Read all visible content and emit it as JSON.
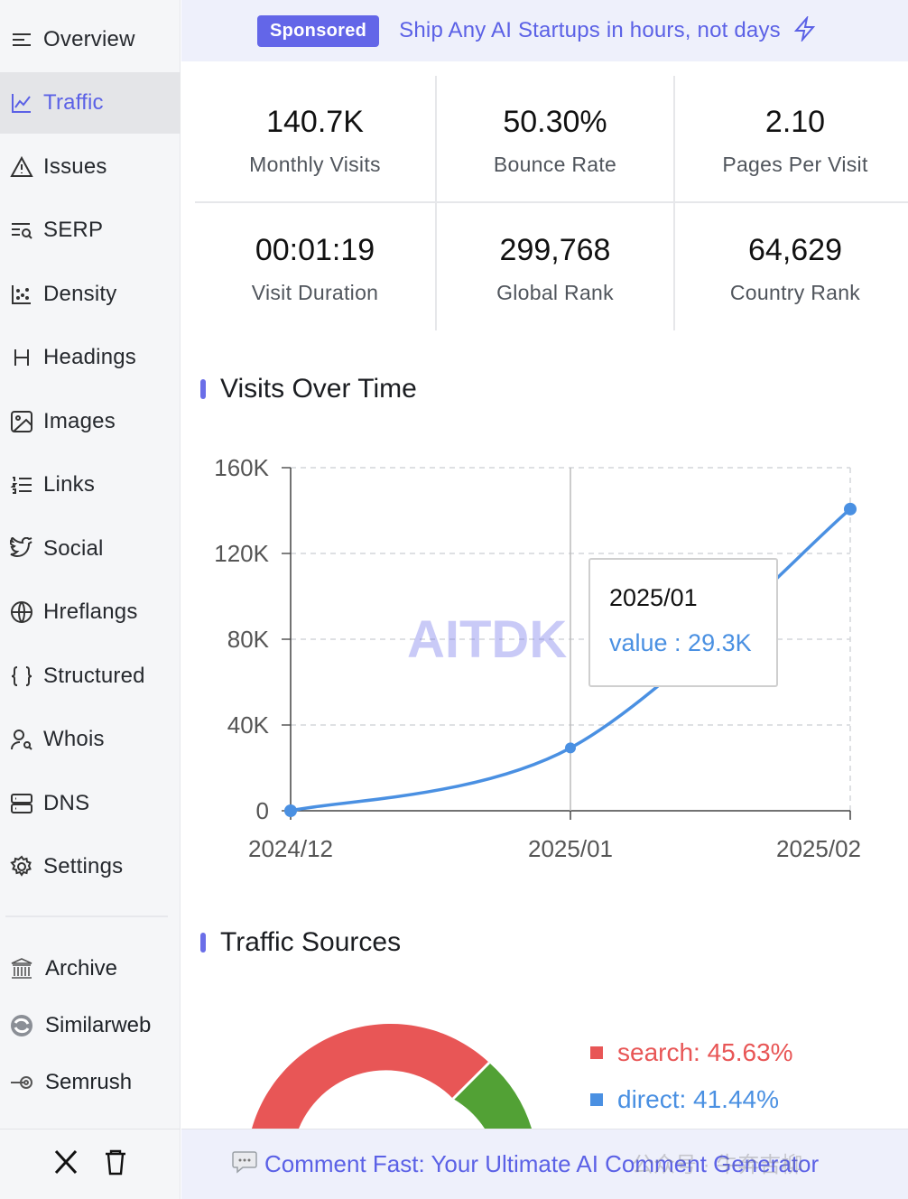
{
  "sidebar": {
    "items": [
      {
        "label": "Overview",
        "icon": "list-icon",
        "active": false
      },
      {
        "label": "Traffic",
        "icon": "line-chart-icon",
        "active": true
      },
      {
        "label": "Issues",
        "icon": "warning-icon",
        "active": false
      },
      {
        "label": "SERP",
        "icon": "serp-icon",
        "active": false
      },
      {
        "label": "Density",
        "icon": "scatter-icon",
        "active": false
      },
      {
        "label": "Headings",
        "icon": "heading-icon",
        "active": false
      },
      {
        "label": "Images",
        "icon": "image-icon",
        "active": false
      },
      {
        "label": "Links",
        "icon": "numbered-list-icon",
        "active": false
      },
      {
        "label": "Social",
        "icon": "bird-icon",
        "active": false
      },
      {
        "label": "Hreflangs",
        "icon": "globe-icon",
        "active": false
      },
      {
        "label": "Structured",
        "icon": "braces-icon",
        "active": false
      },
      {
        "label": "Whois",
        "icon": "user-search-icon",
        "active": false
      },
      {
        "label": "DNS",
        "icon": "server-icon",
        "active": false
      },
      {
        "label": "Settings",
        "icon": "gear-icon",
        "active": false
      }
    ],
    "external": [
      {
        "label": "Archive",
        "icon": "archive-building-icon"
      },
      {
        "label": "Similarweb",
        "icon": "similarweb-logo-icon"
      },
      {
        "label": "Semrush",
        "icon": "semrush-logo-icon"
      }
    ],
    "bottom_icons": [
      "x-logo-icon",
      "trash-icon"
    ]
  },
  "banner": {
    "badge": "Sponsored",
    "text": "Ship Any AI Startups in hours, not days",
    "icon": "lightning-icon"
  },
  "stats": [
    {
      "value": "140.7K",
      "label": "Monthly Visits"
    },
    {
      "value": "50.30%",
      "label": "Bounce Rate"
    },
    {
      "value": "2.10",
      "label": "Pages Per Visit"
    },
    {
      "value": "00:01:19",
      "label": "Visit Duration"
    },
    {
      "value": "299,768",
      "label": "Global Rank"
    },
    {
      "value": "64,629",
      "label": "Country Rank"
    }
  ],
  "visits_section": {
    "title": "Visits Over Time"
  },
  "chart_data": {
    "type": "line",
    "x": [
      "2024/12",
      "2025/01",
      "2025/02"
    ],
    "series": [
      {
        "values": [
          0,
          29300,
          140700
        ]
      }
    ],
    "yticks": [
      "0",
      "40K",
      "80K",
      "120K",
      "160K"
    ],
    "ylim": [
      0,
      160000
    ],
    "grid": true,
    "tooltip": {
      "title": "2025/01",
      "text": "value : 29.3K"
    },
    "watermark": "AITDK",
    "color": "#4a90e2"
  },
  "traffic_section": {
    "title": "Traffic Sources"
  },
  "sources": [
    {
      "label": "search: 45.63%",
      "color": "#e85656",
      "share": 45.63
    },
    {
      "label": "direct: 41.44%",
      "color": "#4a90e2",
      "share": 41.44
    }
  ],
  "bottom_bar": {
    "text": "Comment Fast: Your Ultimate AI Comment Generator",
    "icon": "speech-bubble-icon",
    "watermark": "公众号 · 牛奔吉柳"
  },
  "colors": {
    "accent": "#5b61e6",
    "line": "#4a90e2",
    "search": "#e85656",
    "green": "#52a135"
  }
}
